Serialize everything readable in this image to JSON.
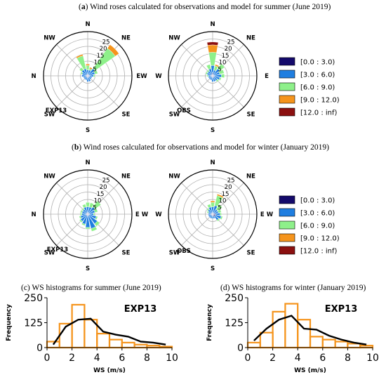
{
  "captions": {
    "a": {
      "label": "a",
      "text": " Wind roses calculated for observations and model for summer (June 2019)"
    },
    "b": {
      "label": "b",
      "text": " Wind roses calculated for observations and model for winter (January 2019)"
    },
    "c": {
      "text": "(c) WS histograms for summer (June 2019)"
    },
    "d": {
      "text": "(d) WS histograms for winter (January 2019)"
    }
  },
  "legend": {
    "bins": [
      "[0.0 : 3.0)",
      "[3.0 : 6.0)",
      "[6.0 : 9.0)",
      "[9.0 : 12.0)",
      "[12.0 : inf)"
    ],
    "colors": [
      "#140a6b",
      "#1f7ee0",
      "#8ef08a",
      "#f5941c",
      "#8b1010"
    ]
  },
  "chart_data": [
    {
      "type": "windrose",
      "panel": "a-left",
      "label": "EXP13",
      "directions": [
        "N",
        "NE",
        "E",
        "SE",
        "S",
        "SW",
        "W",
        "NW"
      ],
      "direction_labels": [
        "N",
        "NE",
        "EW",
        "SE",
        "S",
        "SW",
        "N",
        "NW"
      ],
      "radial_ticks": [
        5,
        10,
        15,
        20,
        25
      ],
      "rmax": 30,
      "sectors_deg": [
        -45,
        -22.5,
        0,
        22.5,
        45,
        67.5,
        90,
        112.5,
        135,
        157.5,
        180,
        202.5,
        225,
        247.5,
        270,
        292.5
      ],
      "stacks": [
        [
          1,
          3,
          3,
          1,
          0
        ],
        [
          1,
          3,
          1,
          1,
          0
        ],
        [
          1,
          5,
          17,
          3,
          0
        ],
        [
          1,
          4,
          2,
          0,
          0
        ],
        [
          1,
          3,
          1,
          0,
          0
        ],
        [
          1,
          2,
          0,
          0,
          0
        ],
        [
          1,
          2,
          0,
          0,
          0
        ],
        [
          1,
          3,
          0,
          0,
          0
        ],
        [
          1,
          3,
          0,
          0,
          0
        ],
        [
          1,
          2,
          0,
          0,
          0
        ],
        [
          1,
          2,
          0,
          0,
          0
        ],
        [
          1,
          2,
          0,
          0,
          0
        ],
        [
          1,
          3,
          0,
          0,
          0
        ],
        [
          1,
          3,
          1,
          0,
          0
        ],
        [
          1,
          4,
          2,
          0,
          0
        ],
        [
          1,
          4,
          9,
          1,
          0
        ]
      ]
    },
    {
      "type": "windrose",
      "panel": "a-right",
      "label": "OBS",
      "directions": [
        "N",
        "NE",
        "E",
        "SE",
        "S",
        "SW",
        "W",
        "NW"
      ],
      "direction_labels": [
        "N",
        "NE",
        "E",
        "SE",
        "S",
        "SW",
        "W",
        "NW"
      ],
      "radial_ticks": [
        5,
        10,
        15,
        20,
        25
      ],
      "rmax": 30,
      "sectors_deg": [
        -45,
        -22.5,
        0,
        22.5,
        45,
        67.5,
        90,
        112.5,
        135,
        157.5,
        180,
        202.5,
        225,
        247.5,
        270,
        292.5
      ],
      "stacks": [
        [
          2,
          5,
          9,
          5,
          2
        ],
        [
          1,
          3,
          3,
          1,
          0
        ],
        [
          1,
          5,
          4,
          0,
          0
        ],
        [
          1,
          4,
          3,
          0,
          0
        ],
        [
          1,
          5,
          2,
          0,
          0
        ],
        [
          1,
          4,
          1,
          0,
          0
        ],
        [
          1,
          3,
          1,
          0,
          0
        ],
        [
          1,
          3,
          0,
          0,
          0
        ],
        [
          1,
          3,
          0,
          0,
          0
        ],
        [
          1,
          2,
          0,
          0,
          0
        ],
        [
          1,
          2,
          0,
          0,
          0
        ],
        [
          1,
          2,
          0,
          0,
          0
        ],
        [
          1,
          2,
          1,
          0,
          0
        ],
        [
          1,
          3,
          1,
          0,
          0
        ],
        [
          1,
          3,
          1,
          0,
          0
        ],
        [
          1,
          4,
          3,
          0,
          0
        ]
      ]
    },
    {
      "type": "windrose",
      "panel": "b-left",
      "label": "EXP13",
      "directions": [
        "N",
        "NE",
        "E",
        "SE",
        "S",
        "SW",
        "W",
        "NW"
      ],
      "direction_labels": [
        "N",
        "NE",
        "E W",
        "SE",
        "S",
        "SW",
        "N",
        "NW"
      ],
      "radial_ticks": [
        5,
        10,
        15,
        20,
        25
      ],
      "rmax": 30,
      "sectors_deg": [
        -45,
        -22.5,
        0,
        22.5,
        45,
        67.5,
        90,
        112.5,
        135,
        157.5,
        180,
        202.5,
        225,
        247.5,
        270,
        292.5
      ],
      "stacks": [
        [
          1,
          4,
          3,
          0,
          0
        ],
        [
          1,
          4,
          3,
          0,
          0
        ],
        [
          1,
          5,
          5,
          0,
          0
        ],
        [
          1,
          4,
          2,
          0,
          0
        ],
        [
          1,
          3,
          1,
          0,
          0
        ],
        [
          1,
          5,
          1,
          0,
          0
        ],
        [
          1,
          7,
          2,
          0,
          0
        ],
        [
          1,
          9,
          2,
          0,
          0
        ],
        [
          1,
          8,
          1,
          0,
          0
        ],
        [
          1,
          6,
          1,
          0,
          0
        ],
        [
          1,
          5,
          1,
          0,
          0
        ],
        [
          1,
          4,
          1,
          0,
          0
        ],
        [
          1,
          3,
          1,
          0,
          0
        ],
        [
          1,
          3,
          1,
          0,
          0
        ],
        [
          1,
          3,
          1,
          0,
          0
        ],
        [
          1,
          4,
          2,
          0,
          0
        ]
      ]
    },
    {
      "type": "windrose",
      "panel": "b-right",
      "label": "OBS",
      "directions": [
        "N",
        "NE",
        "E",
        "SE",
        "S",
        "SW",
        "W",
        "NW"
      ],
      "direction_labels": [
        "N",
        "NE",
        "E W",
        "SE",
        "S",
        "SW",
        "W",
        "NW"
      ],
      "radial_ticks": [
        5,
        10,
        15,
        20,
        25
      ],
      "rmax": 30,
      "sectors_deg": [
        -45,
        -22.5,
        0,
        22.5,
        45,
        67.5,
        90,
        112.5,
        135,
        157.5,
        180,
        202.5,
        225,
        247.5,
        270,
        292.5
      ],
      "stacks": [
        [
          1,
          4,
          3,
          1,
          0
        ],
        [
          1,
          5,
          7,
          1,
          0
        ],
        [
          1,
          3,
          4,
          0,
          0
        ],
        [
          1,
          3,
          2,
          0,
          0
        ],
        [
          2,
          3,
          1,
          0,
          0
        ],
        [
          2,
          4,
          1,
          0,
          0
        ],
        [
          2,
          3,
          1,
          0,
          0
        ],
        [
          1,
          2,
          0,
          0,
          0
        ],
        [
          1,
          2,
          0,
          0,
          0
        ],
        [
          1,
          2,
          0,
          0,
          0
        ],
        [
          1,
          2,
          0,
          0,
          0
        ],
        [
          1,
          2,
          0,
          0,
          0
        ],
        [
          1,
          2,
          0,
          0,
          0
        ],
        [
          1,
          2,
          1,
          0,
          0
        ],
        [
          1,
          3,
          1,
          0,
          0
        ],
        [
          1,
          4,
          2,
          0,
          0
        ]
      ]
    },
    {
      "type": "histogram",
      "panel": "c",
      "label": "EXP13",
      "xlabel": "WS (m/s)",
      "ylabel": "Frequency",
      "xlim": [
        0,
        10
      ],
      "ylim": [
        0,
        250
      ],
      "xticks": [
        0,
        2,
        4,
        6,
        8,
        10
      ],
      "yticks": [
        0,
        125,
        250
      ],
      "bin_edges": [
        0,
        1,
        2,
        3,
        4,
        5,
        6,
        7,
        8,
        9,
        10
      ],
      "counts": [
        30,
        120,
        215,
        140,
        70,
        40,
        25,
        15,
        10,
        5
      ],
      "line_x": [
        0.5,
        1.5,
        2.5,
        3.5,
        4.5,
        5.5,
        6.5,
        7.5,
        8.5,
        9.5
      ],
      "line_y": [
        15,
        105,
        140,
        145,
        80,
        65,
        55,
        30,
        25,
        15
      ]
    },
    {
      "type": "histogram",
      "panel": "d",
      "label": "EXP13",
      "xlabel": "WS (m/s)",
      "ylabel": "Frequency",
      "xlim": [
        0,
        10
      ],
      "ylim": [
        0,
        250
      ],
      "xticks": [
        0,
        2,
        4,
        6,
        8,
        10
      ],
      "yticks": [
        0,
        125,
        250
      ],
      "bin_edges": [
        0,
        1,
        2,
        3,
        4,
        5,
        6,
        7,
        8,
        9,
        10
      ],
      "counts": [
        25,
        75,
        180,
        220,
        140,
        55,
        40,
        30,
        20,
        10
      ],
      "line_x": [
        0.5,
        1.5,
        2.5,
        3.5,
        4.5,
        5.5,
        6.5,
        7.5,
        8.5,
        9.5
      ],
      "line_y": [
        35,
        95,
        140,
        160,
        95,
        90,
        60,
        40,
        25,
        15
      ]
    }
  ]
}
